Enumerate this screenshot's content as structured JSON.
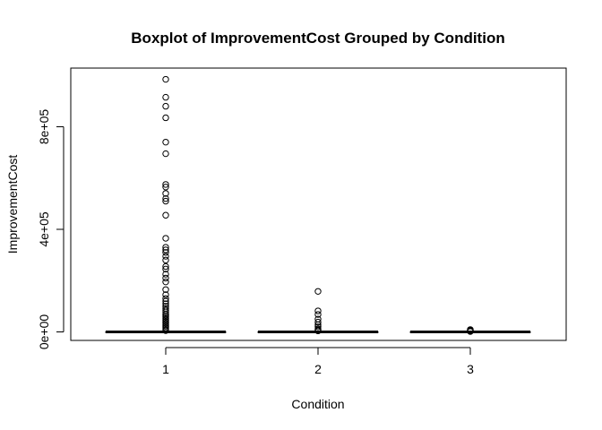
{
  "chart_data": {
    "type": "boxplot",
    "title": "Boxplot of ImprovementCost Grouped by Condition",
    "xlabel": "Condition",
    "ylabel": "ImprovementCost",
    "categories": [
      "1",
      "2",
      "3"
    ],
    "y_ticks": [
      {
        "value": 0,
        "label": "0e+00"
      },
      {
        "value": 400000,
        "label": "4e+05"
      },
      {
        "value": 800000,
        "label": "8e+05"
      }
    ],
    "ylim": [
      -30000,
      1000000
    ],
    "grid": false,
    "boxes": [
      {
        "category": "1",
        "min": 0,
        "q1": 0,
        "median": 0,
        "q3": 0,
        "max": 0
      },
      {
        "category": "2",
        "min": 0,
        "q1": 0,
        "median": 0,
        "q3": 0,
        "max": 0
      },
      {
        "category": "3",
        "min": 0,
        "q1": 0,
        "median": 0,
        "q3": 0,
        "max": 0
      }
    ],
    "outliers": [
      {
        "category": "1",
        "values": [
          985000,
          915000,
          880000,
          835000,
          740000,
          695000,
          575000,
          565000,
          540000,
          520000,
          510000,
          455000,
          365000,
          330000,
          320000,
          310000,
          295000,
          280000,
          255000,
          245000,
          225000,
          210000,
          195000,
          165000,
          145000,
          130000,
          120000,
          110000,
          100000,
          92000,
          85000,
          78000,
          70000,
          64000,
          58000,
          52000,
          46000,
          40000,
          34000,
          28000,
          22000,
          16000,
          10000,
          5000
        ]
      },
      {
        "category": "2",
        "values": [
          158000,
          82000,
          68000,
          50000,
          38000,
          28000,
          20000,
          12000,
          8000,
          4000
        ]
      },
      {
        "category": "3",
        "values": [
          9000,
          7000,
          5000,
          3000,
          1500
        ]
      }
    ]
  }
}
